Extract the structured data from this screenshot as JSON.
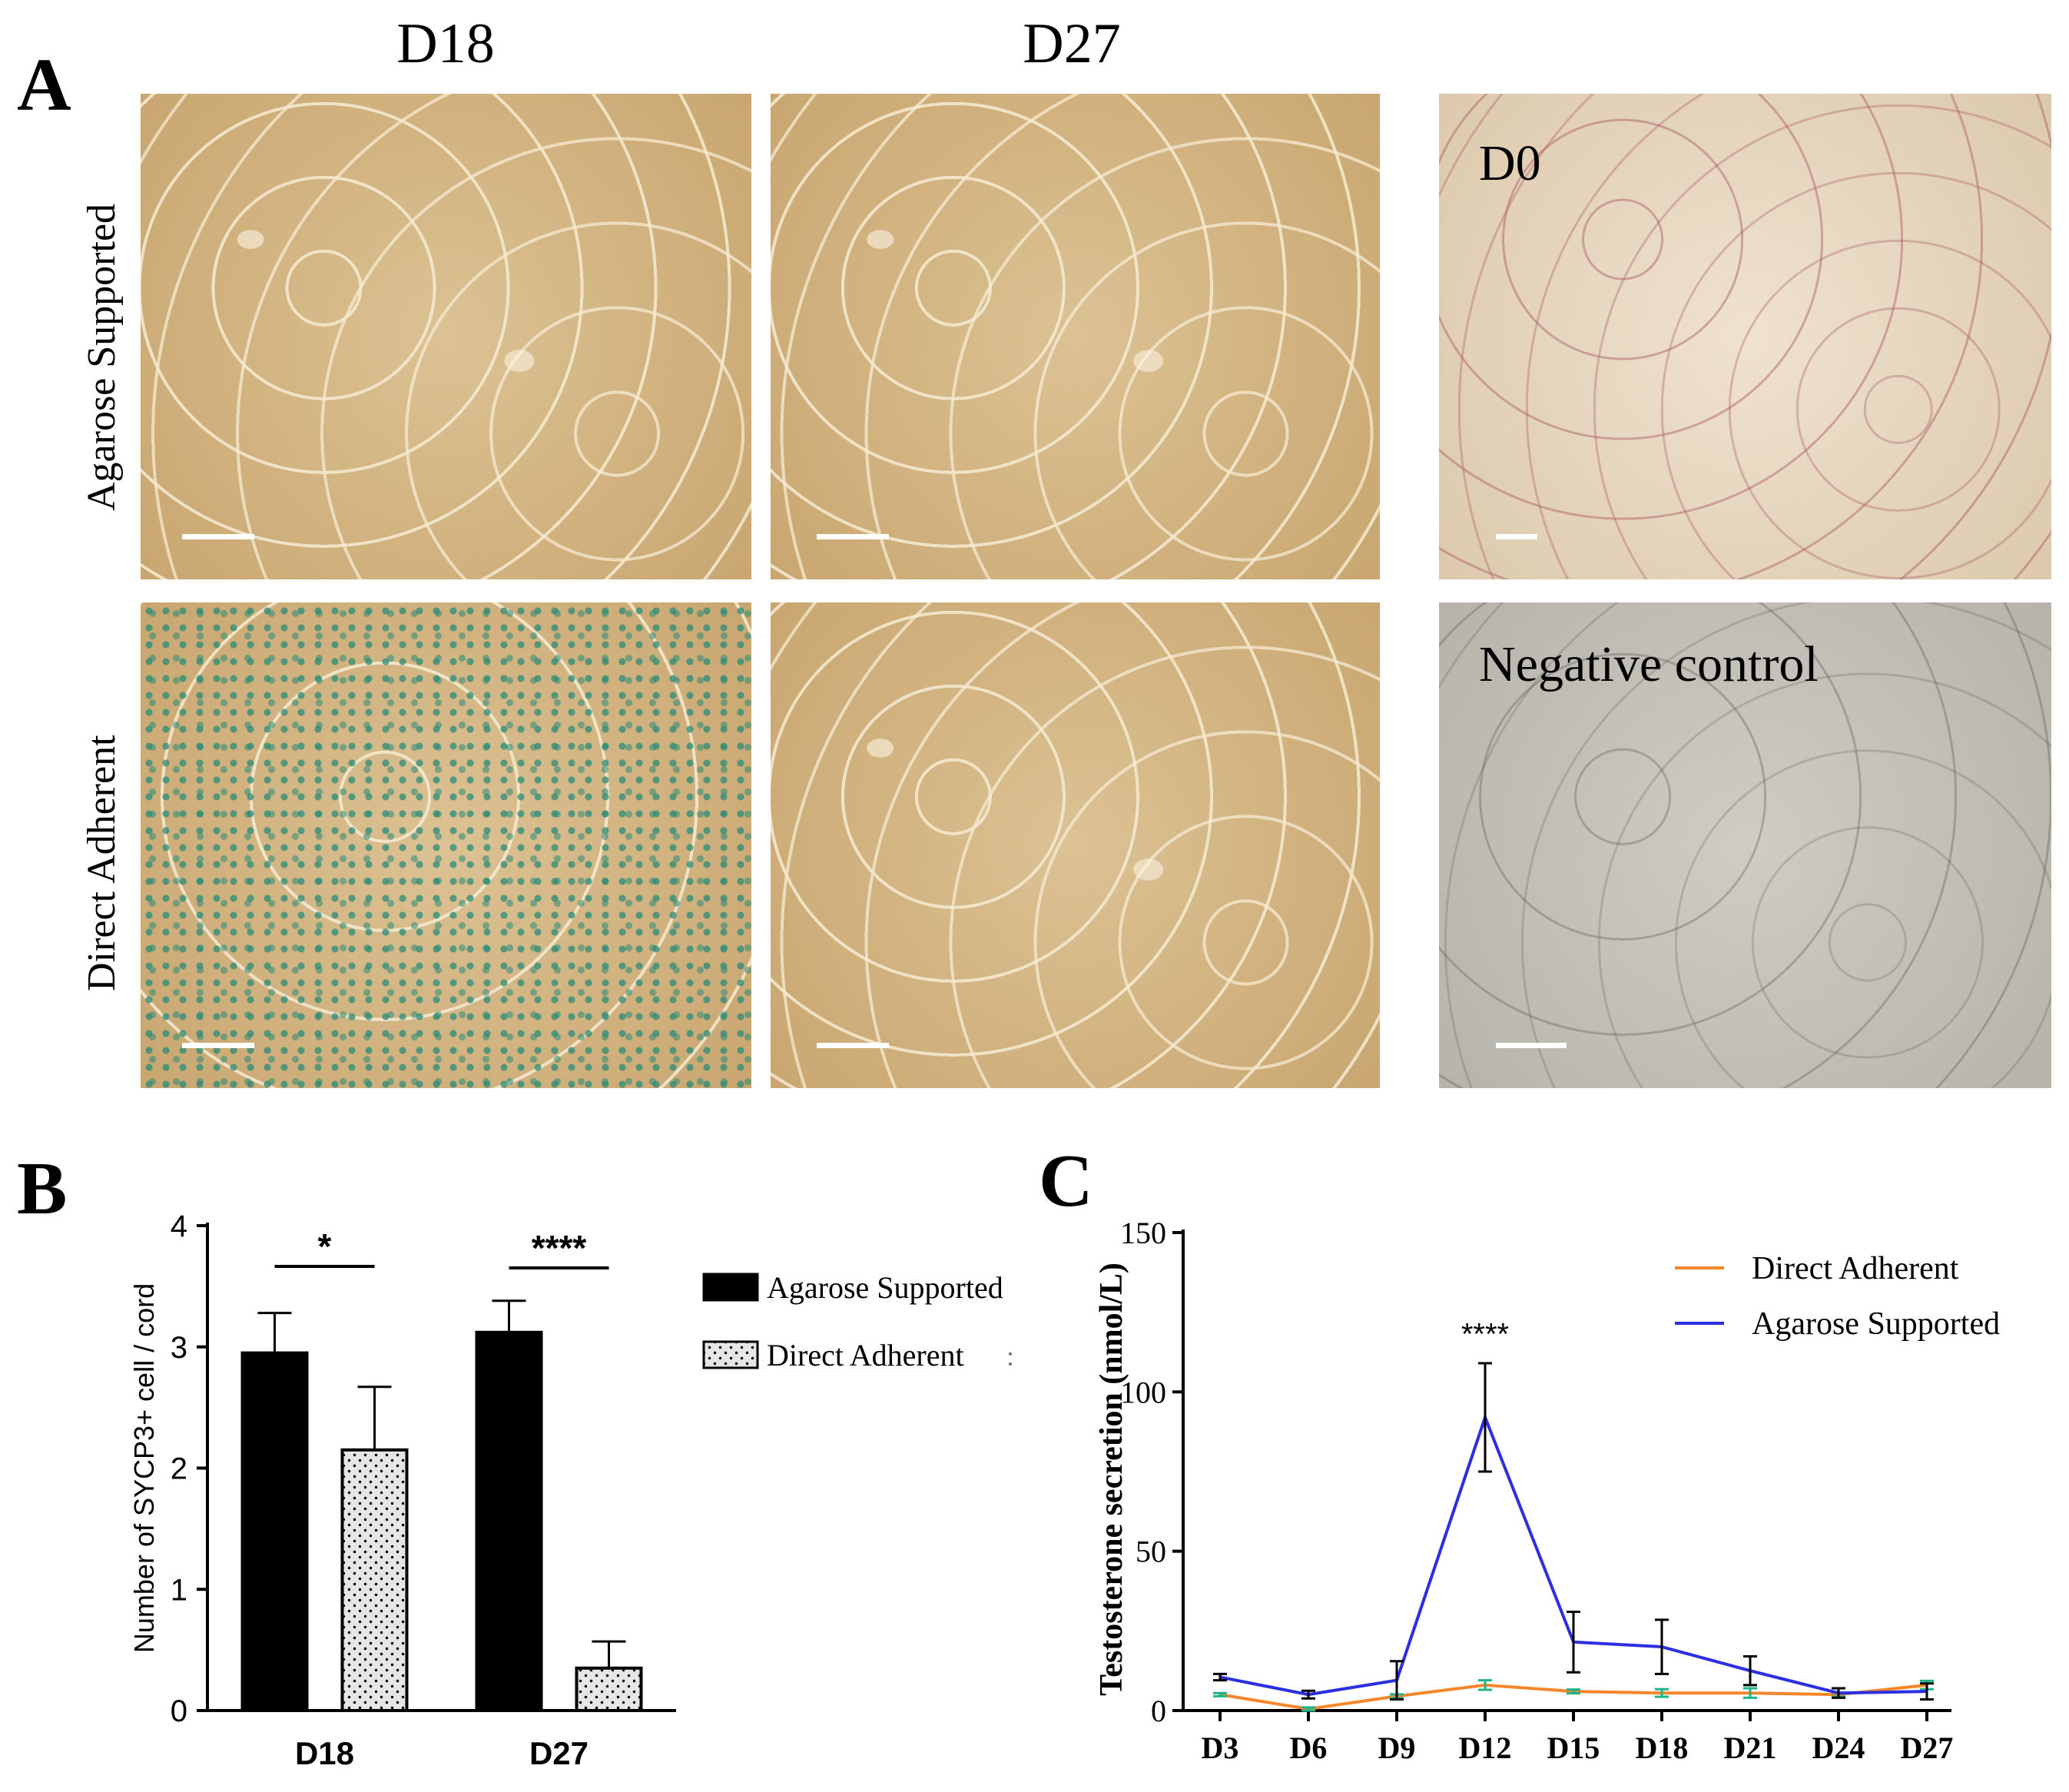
{
  "panel_labels": {
    "a": "A",
    "b": "B",
    "c": "C"
  },
  "panel_a": {
    "column_titles": [
      "D18",
      "D27"
    ],
    "row_titles": [
      "Agarose Supported",
      "Direct Adherent"
    ],
    "overlay_labels": {
      "d0": "D0",
      "negative_control": "Negative control"
    }
  },
  "chart_data": [
    {
      "panel": "B",
      "type": "bar",
      "categories": [
        "D18",
        "D27"
      ],
      "ylabel": "Number of SYCP3+ cell / cord",
      "xlabel": "",
      "ylim": [
        0,
        4
      ],
      "yticks": [
        0,
        1,
        2,
        3,
        4
      ],
      "series": [
        {
          "name": "Agarose Supported",
          "values": [
            2.95,
            3.12
          ],
          "errors": [
            0.33,
            0.26
          ],
          "fill": "#000000"
        },
        {
          "name": "Direct Adherent",
          "values": [
            2.15,
            0.35
          ],
          "errors": [
            0.52,
            0.22
          ],
          "fill": "#e6e6e6"
        }
      ],
      "significance": [
        "*",
        "****"
      ],
      "legend_position": "right",
      "legend_extra_glyph": ":"
    },
    {
      "panel": "C",
      "type": "line",
      "x": [
        "D3",
        "D6",
        "D9",
        "D12",
        "D15",
        "D18",
        "D21",
        "D24",
        "D27"
      ],
      "ylabel": "Testosterone secretion (nmol/L)",
      "xlabel": "",
      "ylim": [
        0,
        150
      ],
      "yticks": [
        0,
        50,
        100,
        150
      ],
      "series": [
        {
          "name": "Direct Adherent",
          "color": "#f5872a",
          "values": [
            5,
            0.5,
            4.5,
            8,
            6,
            5.5,
            5.5,
            5,
            8
          ],
          "errors": [
            0.5,
            0.5,
            0.6,
            1.5,
            0.6,
            1.2,
            1.5,
            0.6,
            1.3
          ]
        },
        {
          "name": "Agarose Supported",
          "color": "#2b2fe0",
          "values": [
            10.5,
            5,
            9.5,
            92,
            21.5,
            20,
            12.5,
            5.5,
            6
          ],
          "errors": [
            1,
            1.2,
            6,
            17,
            9.5,
            8.5,
            4.5,
            1.5,
            2.5
          ]
        }
      ],
      "annotation": {
        "text": "****",
        "x": "D12"
      },
      "legend_position": "top-right"
    }
  ]
}
